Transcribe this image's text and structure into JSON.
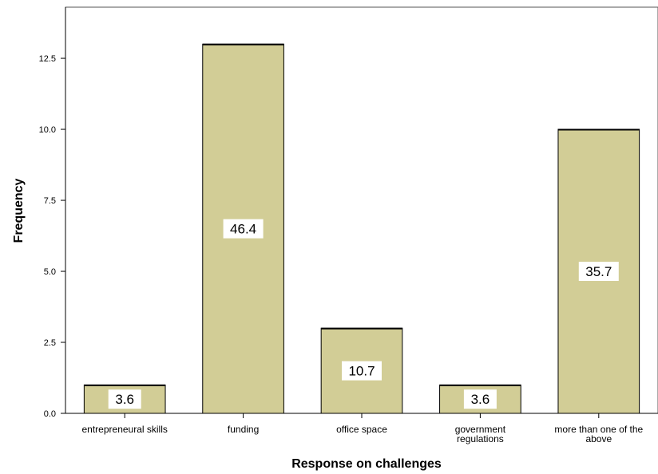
{
  "chart_data": {
    "type": "bar",
    "title": "",
    "xlabel": "Response on challenges",
    "ylabel": "Frequency",
    "ylim": [
      0,
      14.3
    ],
    "yticks": [
      "0.0",
      "2.5",
      "5.0",
      "7.5",
      "10.0",
      "12.5"
    ],
    "grid": false,
    "categories": [
      [
        "entrepreneural skills"
      ],
      [
        "funding"
      ],
      [
        "office space"
      ],
      [
        "government",
        "regulations"
      ],
      [
        "more than one of the",
        "above"
      ]
    ],
    "values": [
      1,
      13,
      3,
      1,
      10
    ],
    "data_labels": [
      "3.6",
      "46.4",
      "10.7",
      "3.6",
      "35.7"
    ],
    "bar_color": "#d2cd96",
    "bar_edge_color": "#000000"
  }
}
